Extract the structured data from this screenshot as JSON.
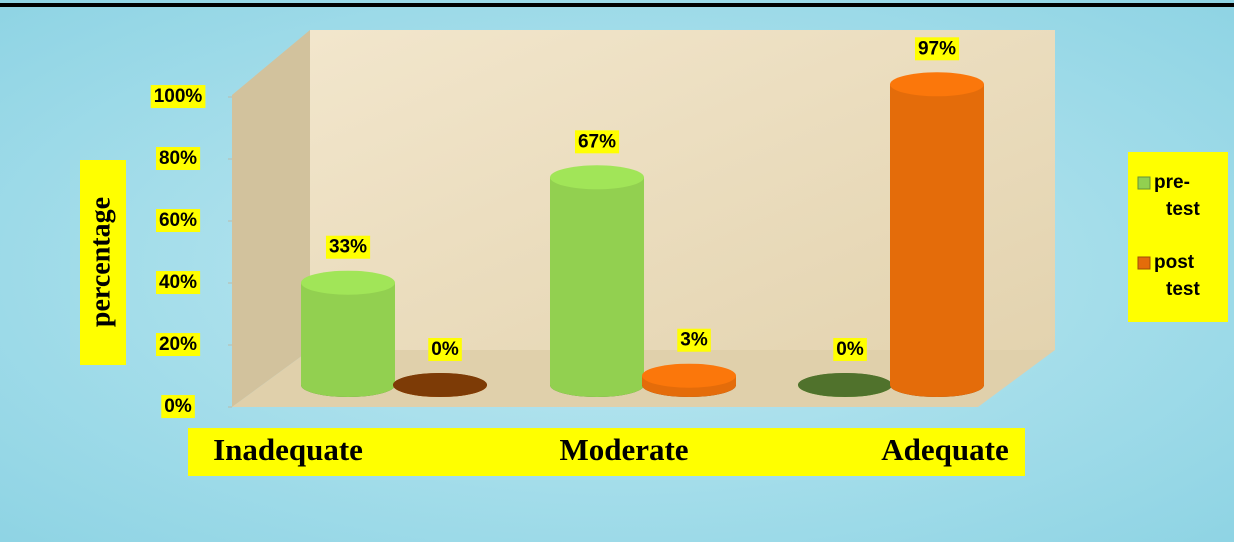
{
  "chart_data": {
    "type": "bar",
    "categories": [
      "Inadequate",
      "Moderate",
      "Adequate"
    ],
    "series": [
      {
        "name": "pre-test",
        "color": "#92d050",
        "values": [
          33,
          67,
          0
        ],
        "value_labels": [
          "33%",
          "67%",
          "0%"
        ]
      },
      {
        "name": "post test",
        "color": "#e46c0a",
        "values": [
          0,
          3,
          97
        ],
        "value_labels": [
          "0%",
          "3%",
          "97%"
        ]
      }
    ],
    "ylabel": "percentage",
    "ylim": [
      0,
      100
    ],
    "yticks": [
      {
        "value": 0,
        "label": "0%"
      },
      {
        "value": 20,
        "label": "20%"
      },
      {
        "value": 40,
        "label": "40%"
      },
      {
        "value": 60,
        "label": "60%"
      },
      {
        "value": 80,
        "label": "80%"
      },
      {
        "value": 100,
        "label": "100%"
      }
    ],
    "legend": "right"
  }
}
